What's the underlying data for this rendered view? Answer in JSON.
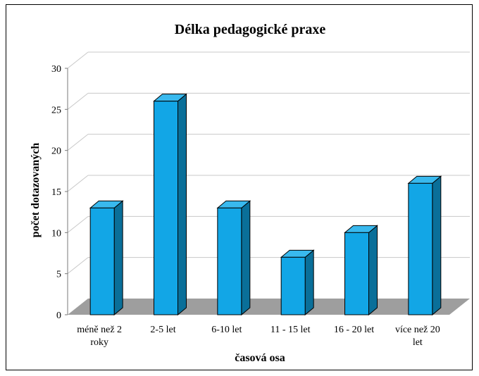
{
  "chart_data": {
    "type": "bar",
    "title": "Délka pedagogické praxe",
    "xlabel": "časová osa",
    "ylabel": "počet dotazovaných",
    "categories": [
      [
        "méně než 2",
        "roky"
      ],
      [
        "2-5 let"
      ],
      [
        "6-10 let"
      ],
      [
        "11 - 15 let"
      ],
      [
        "16 - 20 let"
      ],
      [
        "více než 20",
        "let"
      ]
    ],
    "values": [
      13,
      26,
      13,
      7,
      10,
      16
    ],
    "ylim": [
      0,
      30
    ],
    "yticks": [
      0,
      5,
      10,
      15,
      20,
      25,
      30
    ],
    "grid": true,
    "legend": "none",
    "three_d": true
  },
  "colors": {
    "bar_front": "#12a6e6",
    "bar_side": "#0a6f99",
    "bar_top": "#39b9ee",
    "floor": "#9e9e9e",
    "gridline": "#c8c8c8",
    "frame": "#000000"
  }
}
